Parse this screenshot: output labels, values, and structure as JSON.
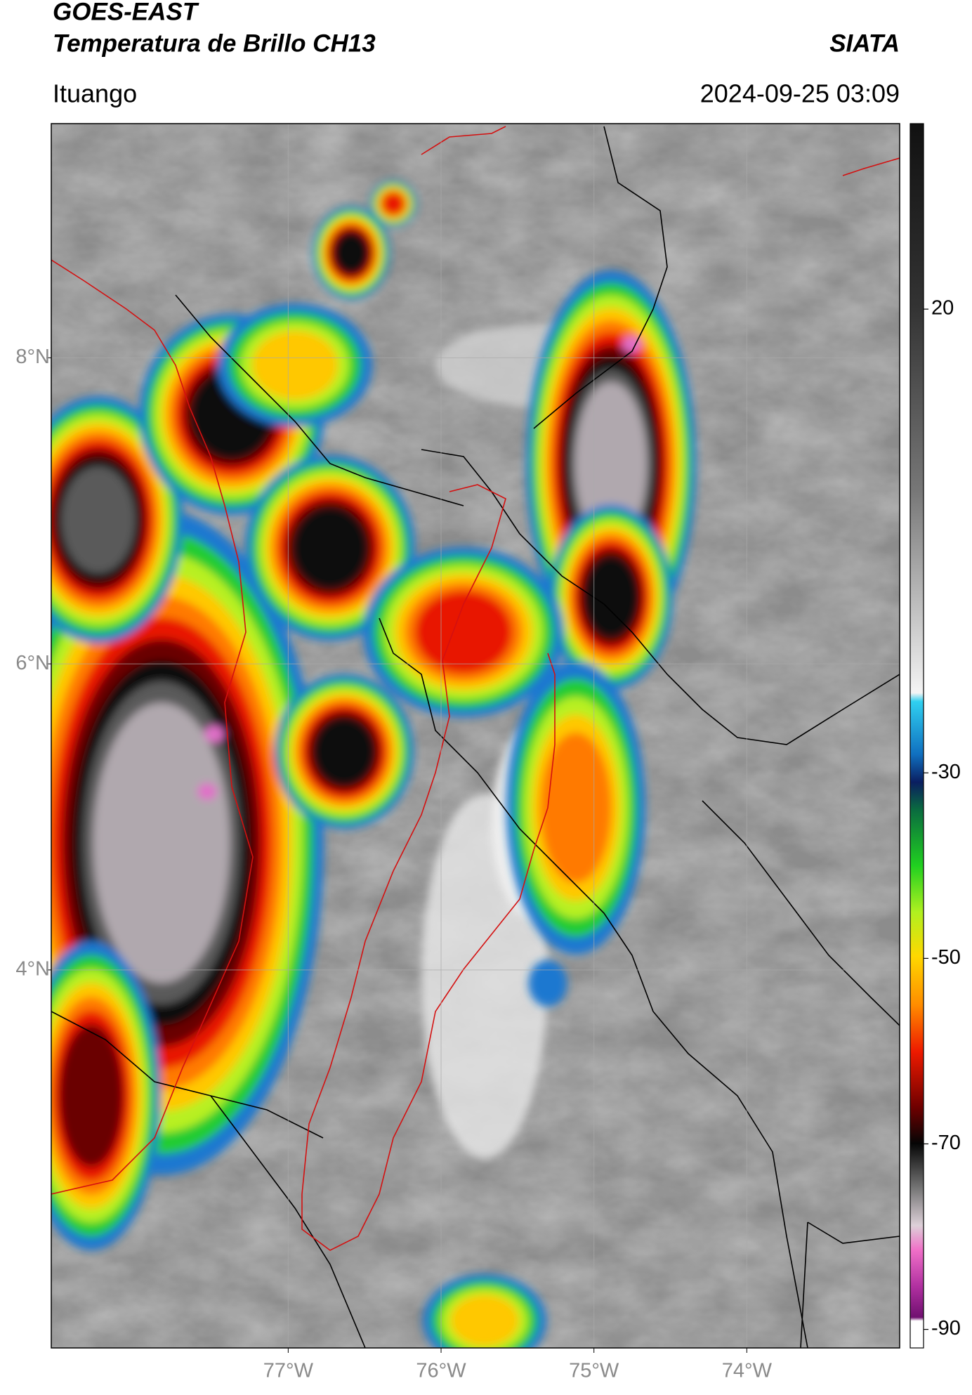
{
  "header": {
    "title": "GOES-EAST",
    "subtitle": "Temperatura de Brillo CH13",
    "org": "SIATA",
    "location": "Ituango",
    "datetime": "2024-09-25 03:09"
  },
  "map": {
    "xlim": [
      -78.55,
      -73.0
    ],
    "ylim": [
      1.53,
      9.53
    ],
    "xticks": [
      {
        "value": -77,
        "label": "77°W"
      },
      {
        "value": -76,
        "label": "76°W"
      },
      {
        "value": -75,
        "label": "75°W"
      },
      {
        "value": -74,
        "label": "74°W"
      }
    ],
    "yticks": [
      {
        "value": 8,
        "label": "8°N"
      },
      {
        "value": 6,
        "label": "6°N"
      },
      {
        "value": 4,
        "label": "4°N"
      }
    ],
    "grid": true
  },
  "colorbar": {
    "lim": [
      -92,
      40
    ],
    "ticks": [
      20,
      -30,
      -50,
      -70,
      -90
    ]
  }
}
